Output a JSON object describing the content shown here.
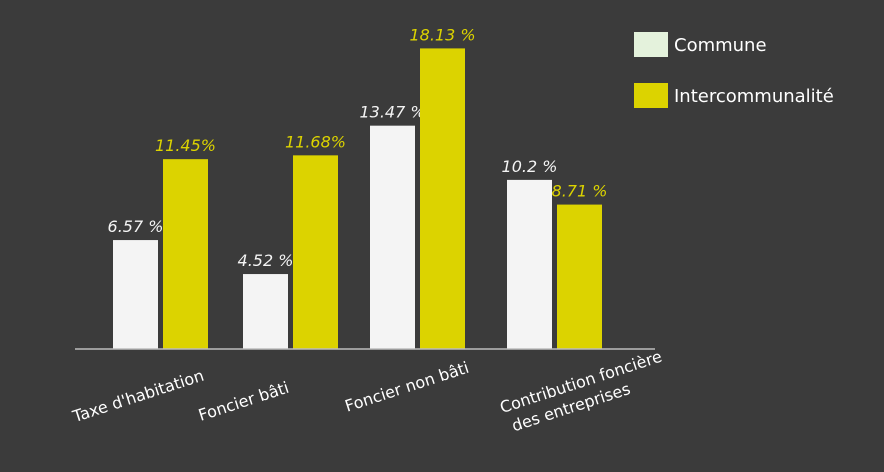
{
  "chart_data": {
    "type": "bar",
    "title": "",
    "xlabel": "",
    "ylabel": "",
    "ylim": [
      0,
      20
    ],
    "grid": false,
    "legend_position": "top-right",
    "categories": [
      [
        "Taxe d'habitation"
      ],
      [
        "Foncier bâti"
      ],
      [
        "Foncier non bâti"
      ],
      [
        "Contribution foncière",
        "des entreprises"
      ]
    ],
    "series": [
      {
        "name": "Commune",
        "color": "#f4f4f4",
        "label_color": "#f4f4f4",
        "values": [
          6.57,
          4.52,
          13.47,
          10.2
        ],
        "labels": [
          "6.57 %",
          "4.52 %",
          "13.47 %",
          "10.2 %"
        ]
      },
      {
        "name": "Intercommunalité",
        "color": "#dcd300",
        "label_color": "#dcd300",
        "values": [
          11.45,
          11.68,
          18.13,
          8.71
        ],
        "labels": [
          "11.45%",
          "11.68%",
          "18.13 %",
          "8.71 %"
        ]
      }
    ],
    "background": "#3b3b3b",
    "axis_color": "#bdbdbd",
    "legend_swatch_colors": [
      "#e4f2dc",
      "#dcd300"
    ]
  }
}
